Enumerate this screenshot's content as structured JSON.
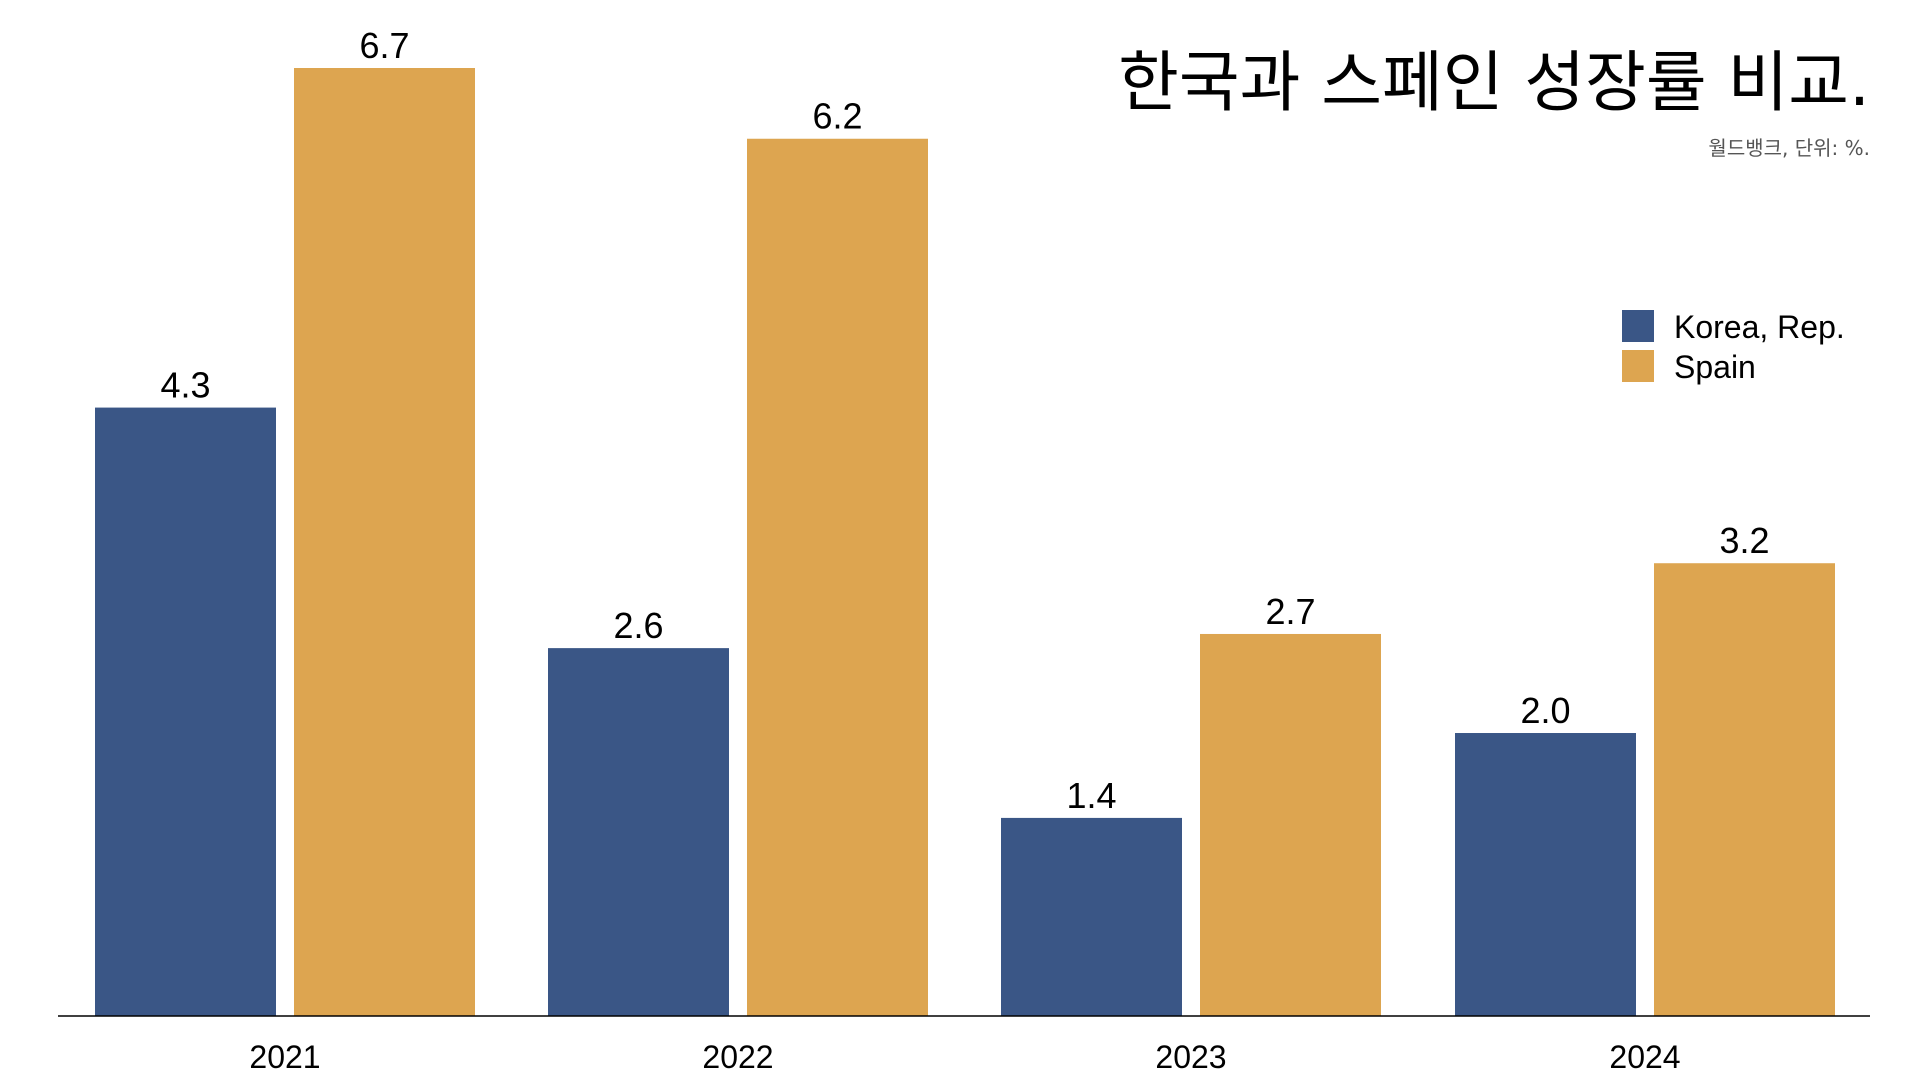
{
  "chart_data": {
    "type": "bar",
    "title": "한국과 스페인 성장률 비교.",
    "subtitle": "월드뱅크, 단위: %.",
    "categories": [
      "2021",
      "2022",
      "2023",
      "2024"
    ],
    "series": [
      {
        "name": "Korea, Rep.",
        "color": "#3a5686",
        "values": [
          4.3,
          2.6,
          1.4,
          2.0
        ]
      },
      {
        "name": "Spain",
        "color": "#dda550",
        "values": [
          6.7,
          6.2,
          2.7,
          3.2
        ]
      }
    ],
    "value_labels": [
      [
        "4.3",
        "2.6",
        "1.4",
        "2.0"
      ],
      [
        "6.7",
        "6.2",
        "2.7",
        "3.2"
      ]
    ],
    "ylim": [
      0,
      7.5
    ],
    "grid": false,
    "legend_position": "top-right",
    "xlabel": "",
    "ylabel": ""
  }
}
